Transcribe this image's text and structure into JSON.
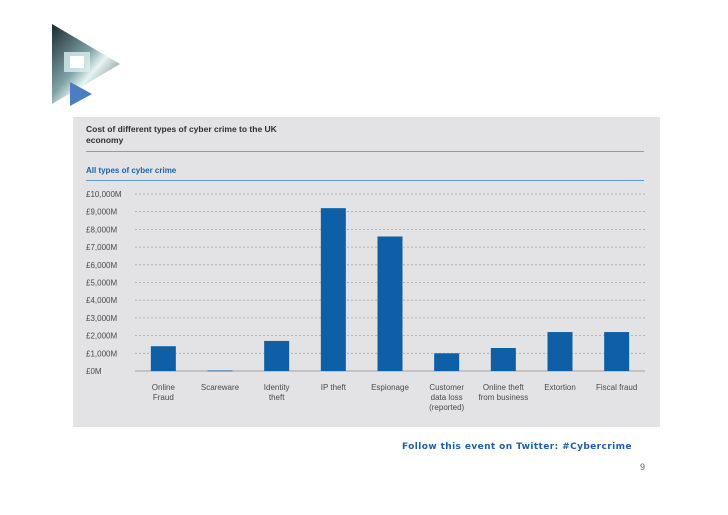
{
  "chart_data": {
    "type": "bar",
    "title": "Cost of different types of cyber crime to the UK economy",
    "subtitle": "All types of cyber crime",
    "categories": [
      "Online Fraud",
      "Scareware",
      "Identity theft",
      "IP theft",
      "Espionage",
      "Customer data loss (reported)",
      "Online theft from business",
      "Extortion",
      "Fiscal fraud"
    ],
    "category_lines": [
      [
        "Online",
        "Fraud"
      ],
      [
        "Scareware"
      ],
      [
        "Identity",
        "theft"
      ],
      [
        "IP theft"
      ],
      [
        "Espionage"
      ],
      [
        "Customer",
        "data loss",
        "(reported)"
      ],
      [
        "Online theft",
        "from business"
      ],
      [
        "Extortion"
      ],
      [
        "Fiscal fraud"
      ]
    ],
    "values": [
      1400,
      30,
      1700,
      9200,
      7600,
      1000,
      1300,
      2200,
      2200
    ],
    "unit": "£M",
    "ylim": [
      0,
      10000
    ],
    "yticks": [
      0,
      1000,
      2000,
      3000,
      4000,
      5000,
      6000,
      7000,
      8000,
      9000,
      10000
    ],
    "ytick_labels": [
      "£0M",
      "£1,000M",
      "£2,000M",
      "£3,000M",
      "£4,000M",
      "£5,000M",
      "£6,000M",
      "£7,000M",
      "£8,000M",
      "£9,000M",
      "£10,000M"
    ],
    "grid": true,
    "bar_color": "#0e5fa6"
  },
  "footer": {
    "text": "Follow this event on Twitter: #Cybercrime"
  },
  "page_number": "9",
  "logo": {
    "name": "play-triangle-logo",
    "accent_color": "#4a7ec0"
  }
}
